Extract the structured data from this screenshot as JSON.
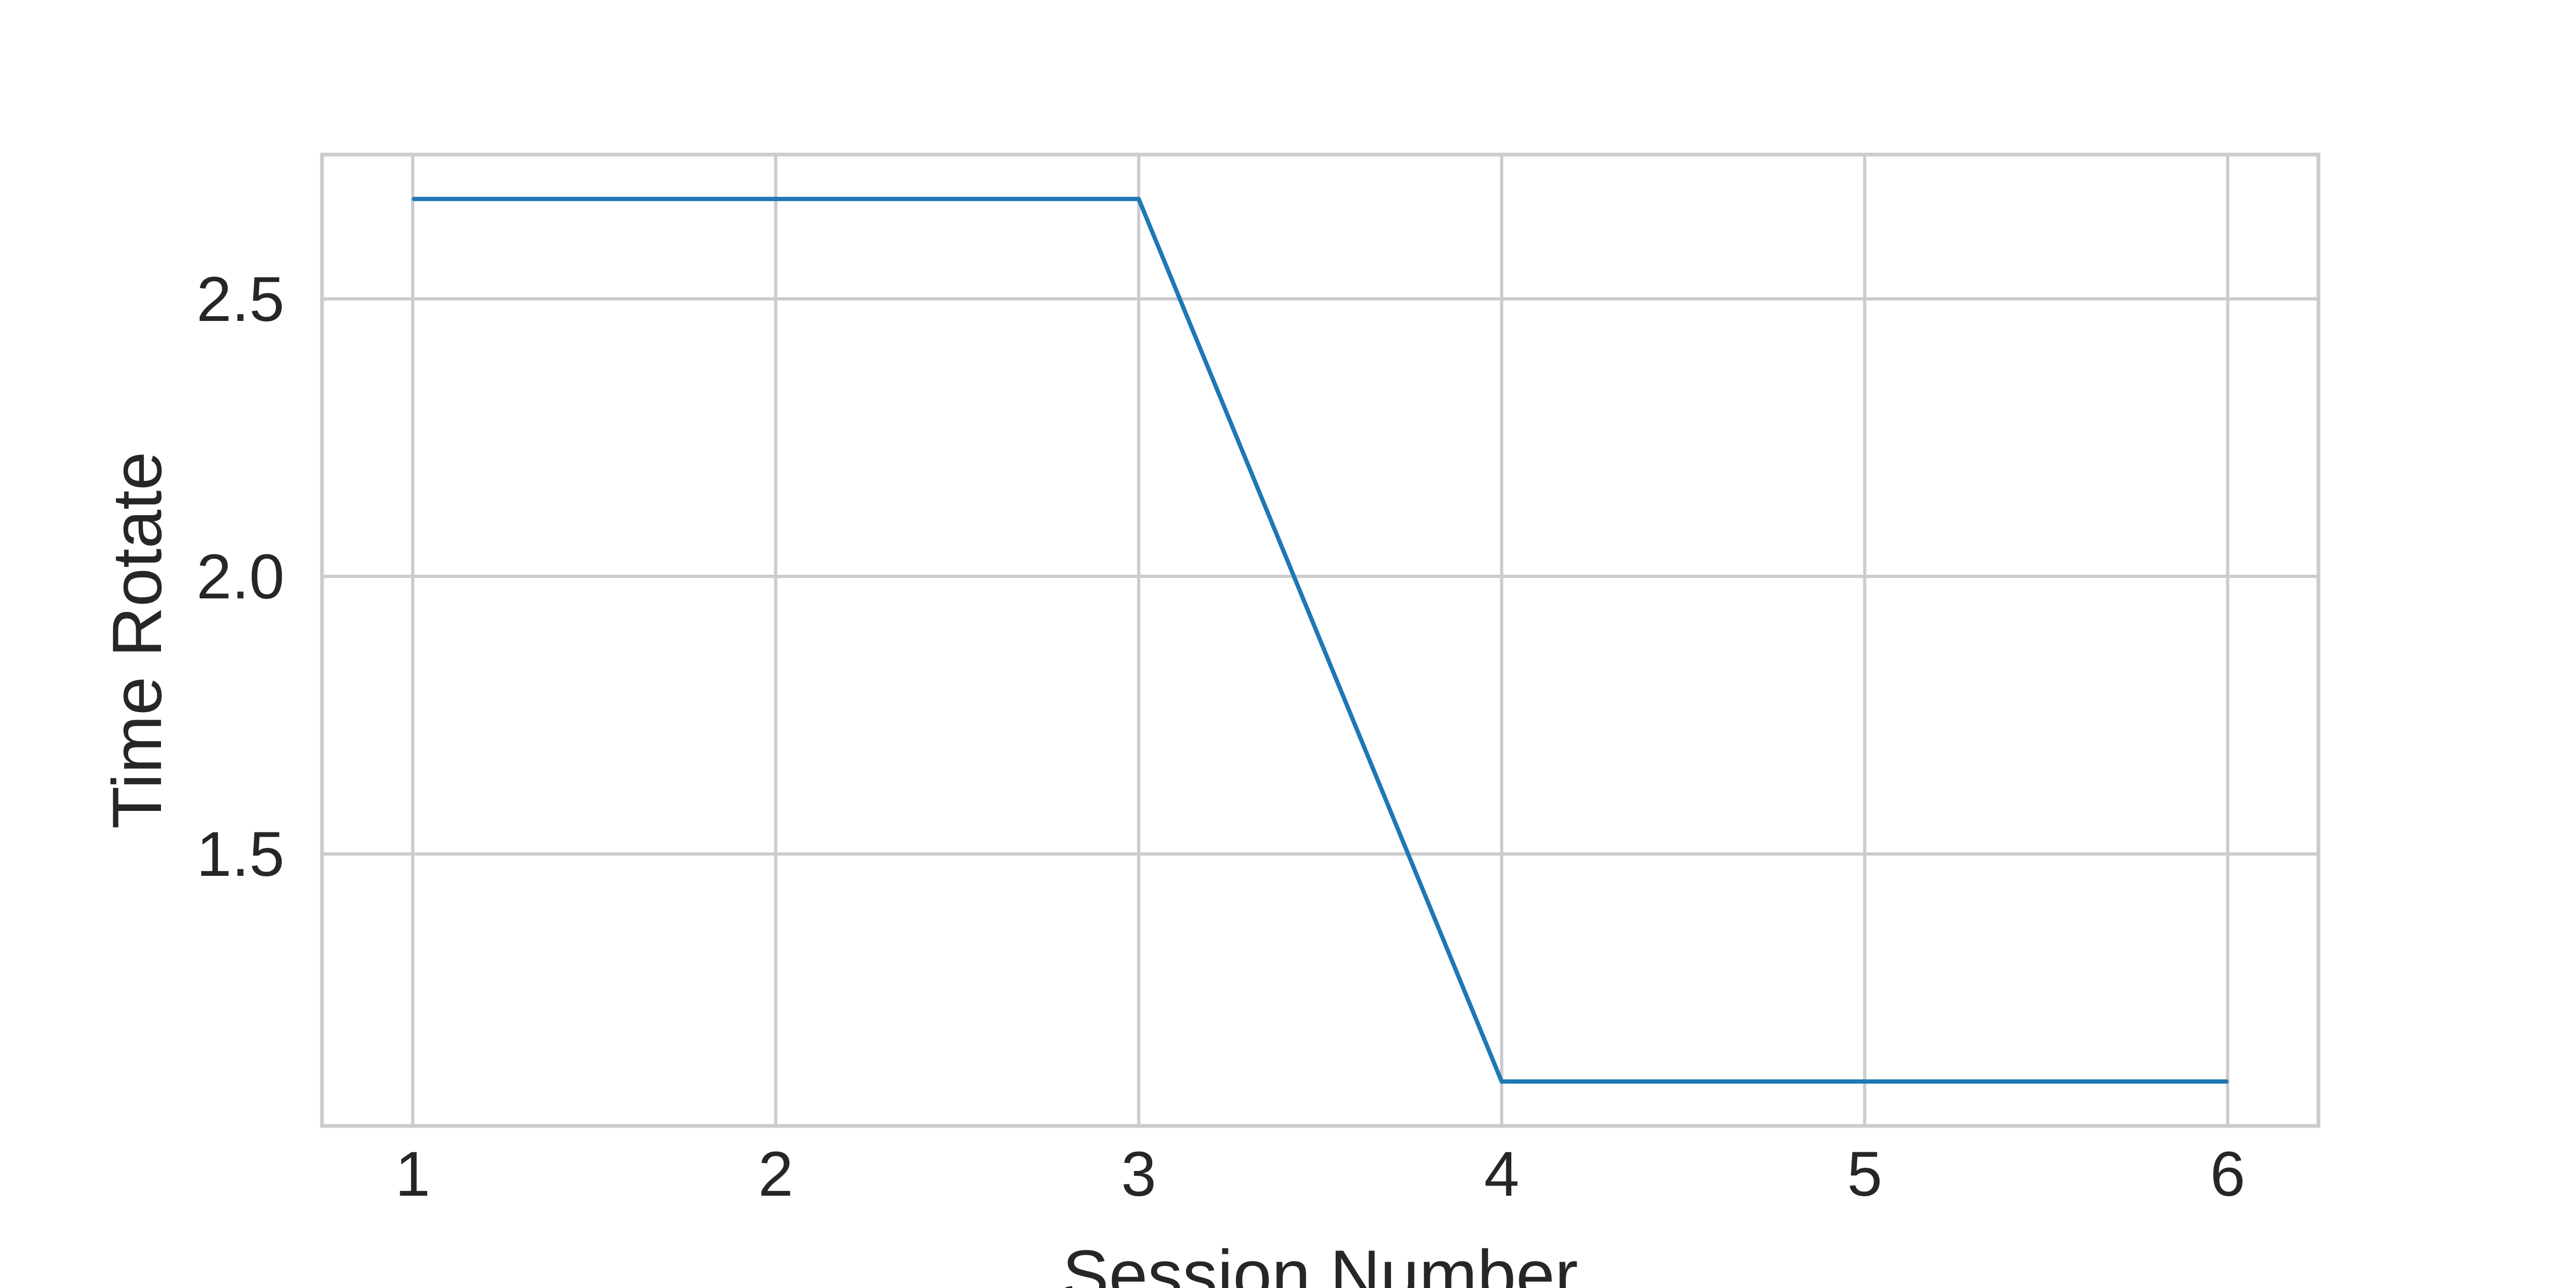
{
  "chart_data": {
    "type": "line",
    "title": "",
    "xlabel": "Session Number",
    "ylabel": "Time Rotate",
    "x": [
      1,
      2,
      3,
      4,
      5,
      6
    ],
    "series": [
      {
        "values": [
          2.68,
          2.68,
          2.68,
          1.09,
          1.09,
          1.09
        ],
        "color": "#1f77b4"
      }
    ],
    "xlim": [
      0.75,
      6.25
    ],
    "ylim": [
      1.01,
      2.76
    ],
    "xticks": [
      "1",
      "2",
      "3",
      "4",
      "5",
      "6"
    ],
    "yticks": [
      "1.5",
      "2.0",
      "2.5"
    ],
    "grid": true,
    "legend": "none"
  }
}
